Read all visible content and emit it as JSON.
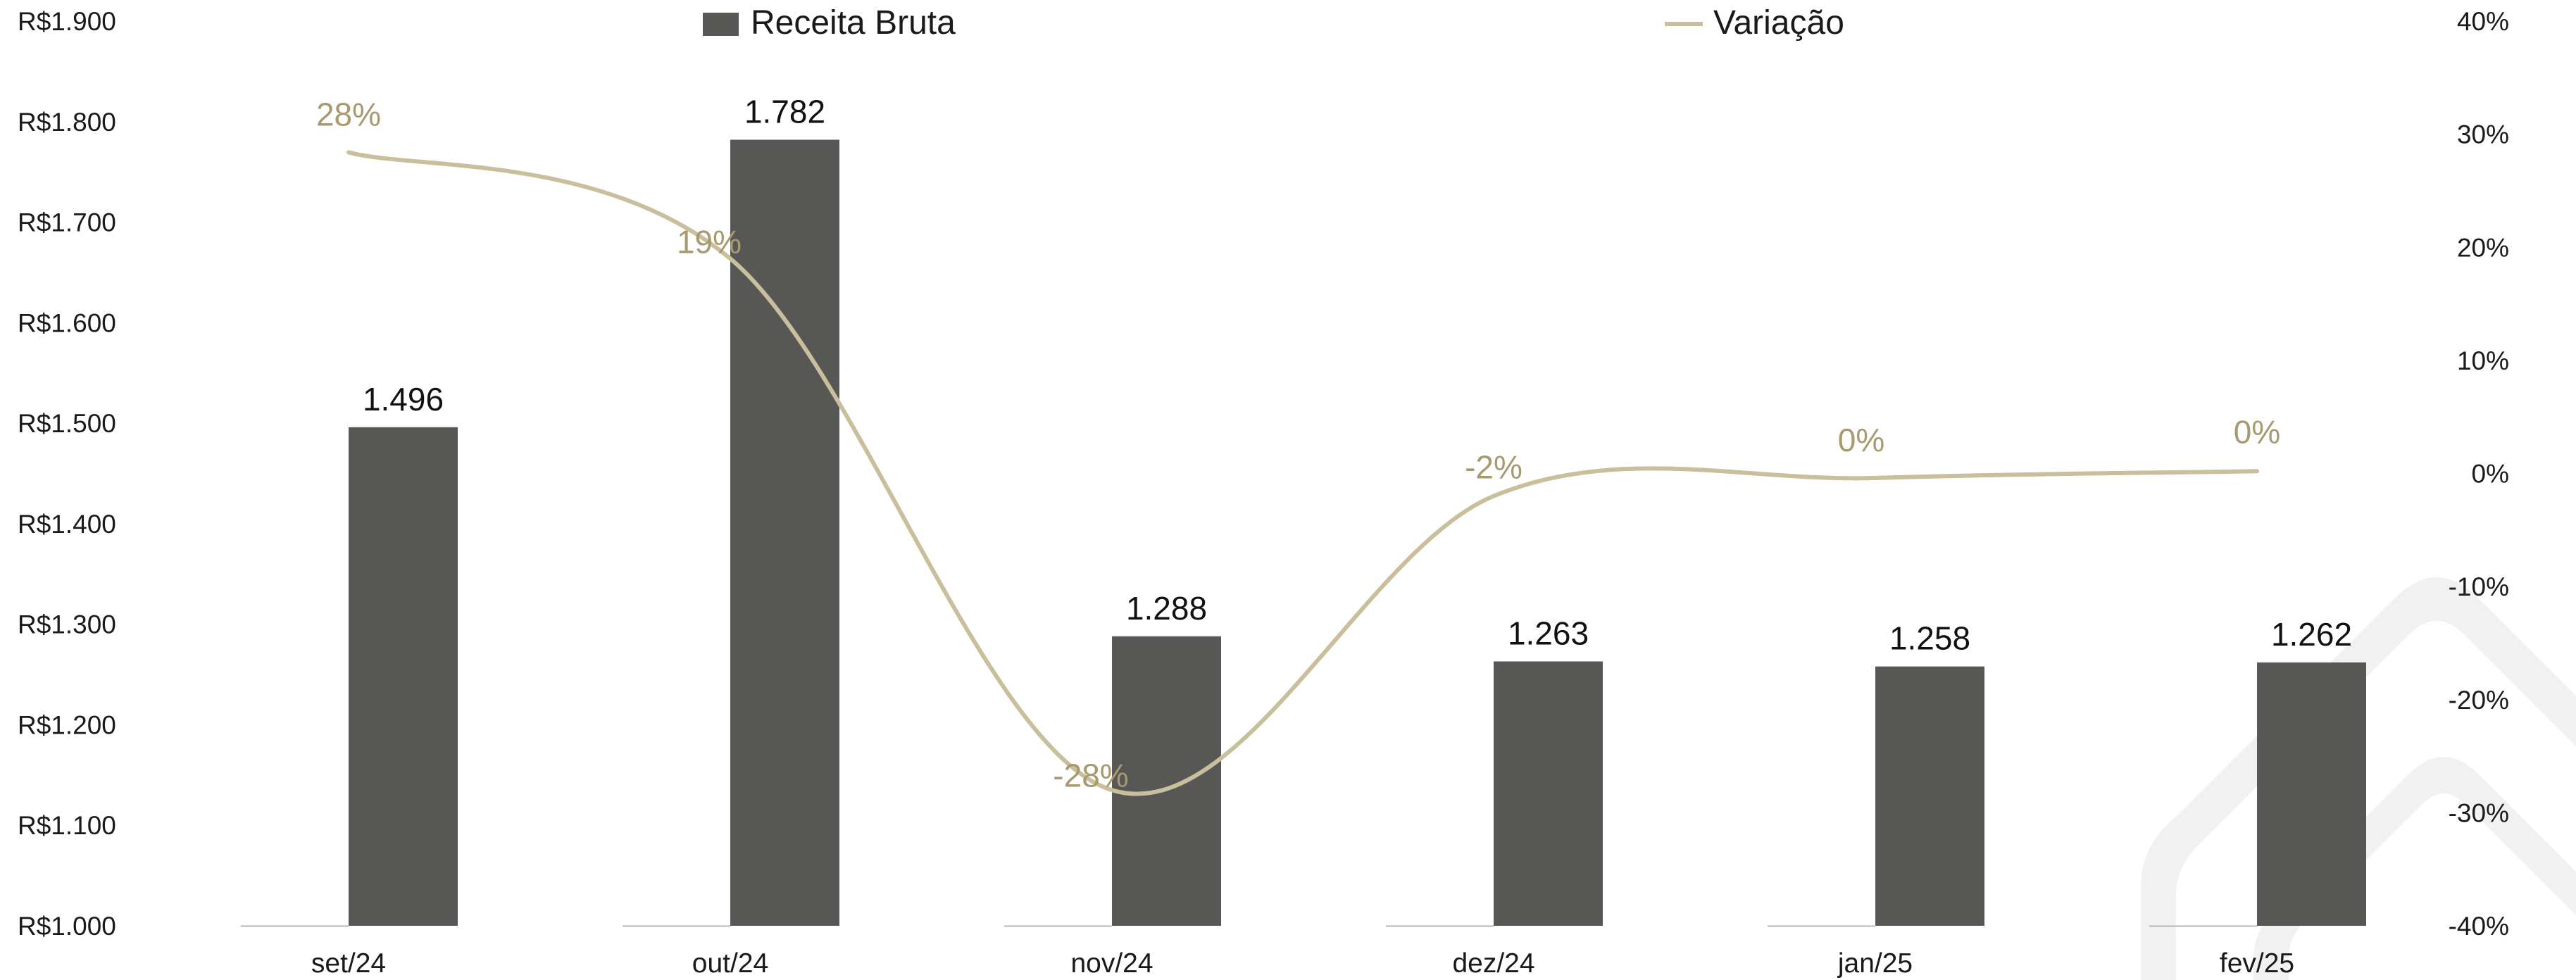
{
  "chart_data": {
    "type": "bar",
    "categories": [
      "set/24",
      "out/24",
      "nov/24",
      "dez/24",
      "jan/25",
      "fev/25"
    ],
    "series": [
      {
        "name": "Receita Bruta",
        "type": "bar",
        "axis": "left",
        "values": [
          1496,
          1782,
          1288,
          1263,
          1258,
          1262
        ],
        "value_labels": [
          "1.496",
          "1.782",
          "1.288",
          "1.263",
          "1.258",
          "1.262"
        ]
      },
      {
        "name": "Variação",
        "type": "line",
        "smooth": true,
        "axis": "right",
        "values": [
          28.4,
          19,
          -28,
          -2,
          -0.4,
          0.2
        ],
        "value_labels": [
          "28%",
          "19%",
          "-28%",
          "-2%",
          "0%",
          "0%"
        ]
      }
    ],
    "y_left": {
      "ylim": [
        1000,
        1900
      ],
      "ticks": [
        1900,
        1800,
        1700,
        1600,
        1500,
        1400,
        1300,
        1200,
        1100,
        1000
      ],
      "tick_labels": [
        "R$1.900",
        "R$1.800",
        "R$1.700",
        "R$1.600",
        "R$1.500",
        "R$1.400",
        "R$1.300",
        "R$1.200",
        "R$1.100",
        "R$1.000"
      ]
    },
    "y_right": {
      "ylim": [
        -40,
        40
      ],
      "ticks": [
        40,
        30,
        20,
        10,
        0,
        -10,
        -20,
        -30,
        -40
      ],
      "tick_labels": [
        "40%",
        "30%",
        "20%",
        "10%",
        "0%",
        "-10%",
        "-20%",
        "-30%",
        "-40%"
      ]
    },
    "legend": {
      "placement": "top",
      "items": [
        "Receita Bruta",
        "Variação"
      ]
    },
    "grid": false,
    "colors": {
      "bar": "#575756",
      "line": "#c9bf9d",
      "line_label": "#a89a70",
      "watermark": "#f1f1f1"
    }
  }
}
